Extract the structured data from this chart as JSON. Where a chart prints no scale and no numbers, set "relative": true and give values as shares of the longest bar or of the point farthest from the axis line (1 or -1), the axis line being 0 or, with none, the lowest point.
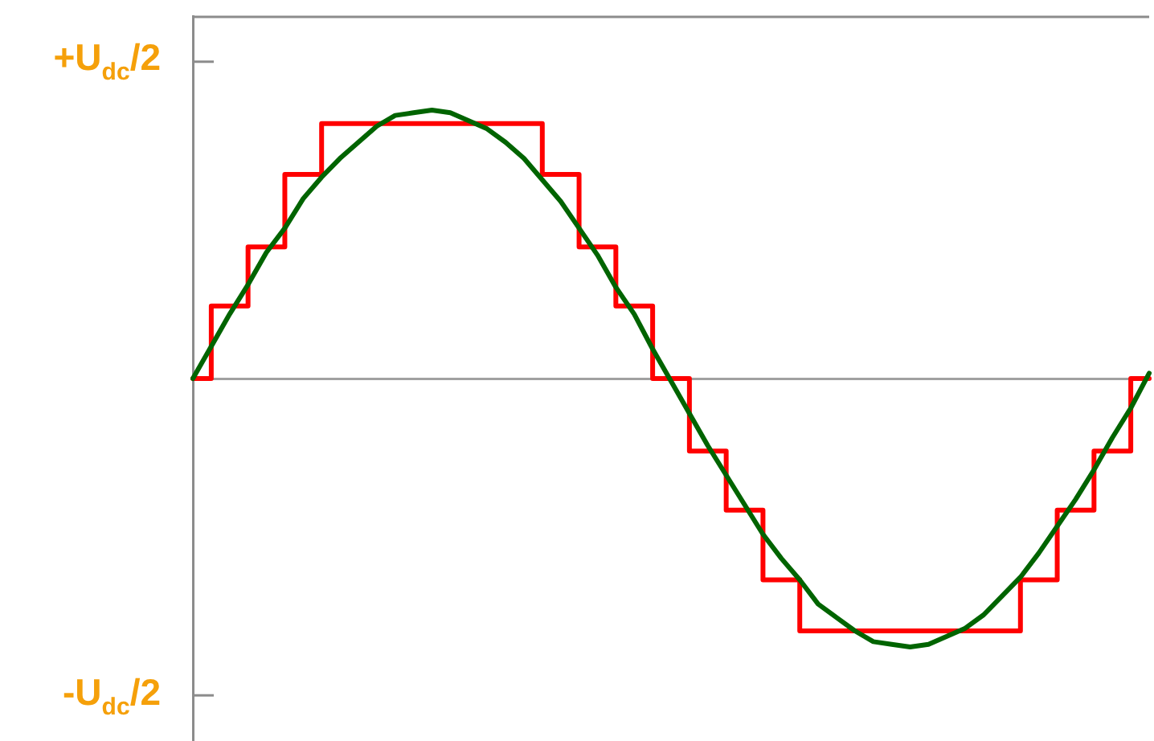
{
  "chart_data": {
    "type": "line",
    "relative": true,
    "categories": [
      null,
      null,
      null,
      null,
      null,
      null,
      null,
      null,
      null,
      null,
      null,
      null,
      null,
      null,
      null,
      null,
      null,
      null,
      null,
      null,
      null,
      null,
      null,
      null,
      null,
      null,
      null,
      null,
      null,
      null,
      null,
      null,
      null,
      null,
      null,
      null,
      null,
      null,
      null,
      null,
      null,
      null,
      null,
      null,
      null,
      null,
      null,
      null,
      null,
      null,
      null,
      null,
      null
    ],
    "annotations": [
      "+U$_{dc}$/2",
      "-U$_{dc}$/2"
    ],
    "grid": false,
    "legend": false,
    "marker": "none",
    "line_style": "solid",
    "series": [
      {
        "color": "#006400",
        "values": [
          0,
          0.12,
          0.24,
          0.35,
          0.47,
          0.56,
          0.67,
          0.75,
          0.82,
          0.88,
          0.94,
          0.98,
          0.99,
          1,
          0.99,
          0.96,
          0.93,
          0.88,
          0.82,
          0.74,
          0.66,
          0.56,
          0.46,
          0.34,
          0.24,
          0.11,
          -0.01,
          -0.13,
          -0.25,
          -0.36,
          -0.47,
          -0.58,
          -0.67,
          -0.75,
          -0.84,
          -0.89,
          -0.94,
          -0.98,
          -0.99,
          -1,
          -0.99,
          -0.96,
          -0.93,
          -0.88,
          -0.81,
          -0.74,
          -0.65,
          -0.55,
          -0.45,
          -0.34,
          -0.22,
          -0.11,
          0.02
        ]
      },
      {
        "type": "step",
        "color": "#ff0000",
        "values": [
          0,
          0.27,
          0.27,
          0.49,
          0.49,
          0.76,
          0.76,
          0.95,
          0.95,
          0.95,
          0.95,
          0.95,
          0.95,
          0.95,
          0.95,
          0.95,
          0.95,
          0.95,
          0.95,
          0.76,
          0.76,
          0.49,
          0.49,
          0.27,
          0.27,
          0,
          0,
          -0.27,
          -0.27,
          -0.49,
          -0.49,
          -0.75,
          -0.75,
          -0.94,
          -0.94,
          -0.94,
          -0.94,
          -0.94,
          -0.94,
          -0.94,
          -0.94,
          -0.94,
          -0.94,
          -0.94,
          -0.94,
          -0.75,
          -0.75,
          -0.49,
          -0.49,
          -0.27,
          -0.27,
          0,
          0
        ]
      }
    ]
  }
}
